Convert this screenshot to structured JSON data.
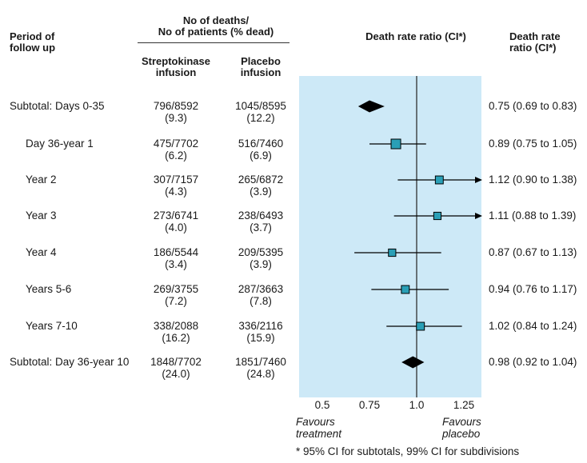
{
  "headers": {
    "period": [
      "Period of",
      "follow up"
    ],
    "deaths": [
      "No of deaths/",
      "No of patients (% dead)"
    ],
    "strepto": [
      "Streptokinase",
      "infusion"
    ],
    "placebo": [
      "Placebo",
      "infusion"
    ],
    "plot_title": "Death rate ratio (CI*)",
    "ratio_col": [
      "Death rate",
      "ratio (CI*)"
    ]
  },
  "rows": [
    {
      "label": "Subtotal: Days 0-35",
      "strepto": "796/8592",
      "strepto_pct": "(9.3)",
      "placebo": "1045/8595",
      "placebo_pct": "(12.2)",
      "ratio_text": "0.75 (0.69 to 0.83)",
      "kind": "subtotal",
      "est": 0.75,
      "lo": 0.69,
      "hi": 0.83
    },
    {
      "label": "Day 36-year 1",
      "strepto": "475/7702",
      "strepto_pct": "(6.2)",
      "placebo": "516/7460",
      "placebo_pct": "(6.9)",
      "ratio_text": "0.89 (0.75 to 1.05)",
      "kind": "sub",
      "est": 0.89,
      "lo": 0.75,
      "hi": 1.05,
      "weight": 1.0
    },
    {
      "label": "Year 2",
      "strepto": "307/7157",
      "strepto_pct": "(4.3)",
      "placebo": "265/6872",
      "placebo_pct": "(3.9)",
      "ratio_text": "1.12 (0.90 to 1.38)",
      "kind": "sub",
      "est": 1.12,
      "lo": 0.9,
      "hi": 1.38,
      "weight": 0.7
    },
    {
      "label": "Year 3",
      "strepto": "273/6741",
      "strepto_pct": "(4.0)",
      "placebo": "238/6493",
      "placebo_pct": "(3.7)",
      "ratio_text": "1.11 (0.88 to 1.39)",
      "kind": "sub",
      "est": 1.11,
      "lo": 0.88,
      "hi": 1.39,
      "weight": 0.6
    },
    {
      "label": "Year 4",
      "strepto": "186/5544",
      "strepto_pct": "(3.4)",
      "placebo": "209/5395",
      "placebo_pct": "(3.9)",
      "ratio_text": "0.87 (0.67 to 1.13)",
      "kind": "sub",
      "est": 0.87,
      "lo": 0.67,
      "hi": 1.13,
      "weight": 0.6
    },
    {
      "label": "Years 5-6",
      "strepto": "269/3755",
      "strepto_pct": "(7.2)",
      "placebo": "287/3663",
      "placebo_pct": "(7.8)",
      "ratio_text": "0.94 (0.76 to 1.17)",
      "kind": "sub",
      "est": 0.94,
      "lo": 0.76,
      "hi": 1.17,
      "weight": 0.7
    },
    {
      "label": "Years 7-10",
      "strepto": "338/2088",
      "strepto_pct": "(16.2)",
      "placebo": "336/2116",
      "placebo_pct": "(15.9)",
      "ratio_text": "1.02 (0.84 to 1.24)",
      "kind": "sub",
      "est": 1.02,
      "lo": 0.84,
      "hi": 1.24,
      "weight": 0.7
    },
    {
      "label": "Subtotal: Day 36-year 10",
      "strepto": "1848/7702",
      "strepto_pct": "(24.0)",
      "placebo": "1851/7460",
      "placebo_pct": "(24.8)",
      "ratio_text": "0.98 (0.92 to 1.04)",
      "kind": "subtotal",
      "est": 0.98,
      "lo": 0.92,
      "hi": 1.04
    }
  ],
  "chart_data": {
    "type": "forest",
    "title": "Death rate ratio (CI*)",
    "xlim": [
      0.35,
      1.4
    ],
    "xticks": [
      0.5,
      0.75,
      1.0,
      1.25
    ],
    "xtick_labels": [
      "0.5",
      "0.75",
      "1.0",
      "1.25"
    ],
    "reference_line": 1.0,
    "favours_left": [
      "Favours",
      "treatment"
    ],
    "favours_right": [
      "Favours",
      "placebo"
    ],
    "colors": {
      "panel": "#cde9f7",
      "marker": "#2a9fb6",
      "diamond": "#000000",
      "line": "#000000"
    }
  },
  "footnote": "* 95% CI for subtotals, 99% CI for subdivisions"
}
